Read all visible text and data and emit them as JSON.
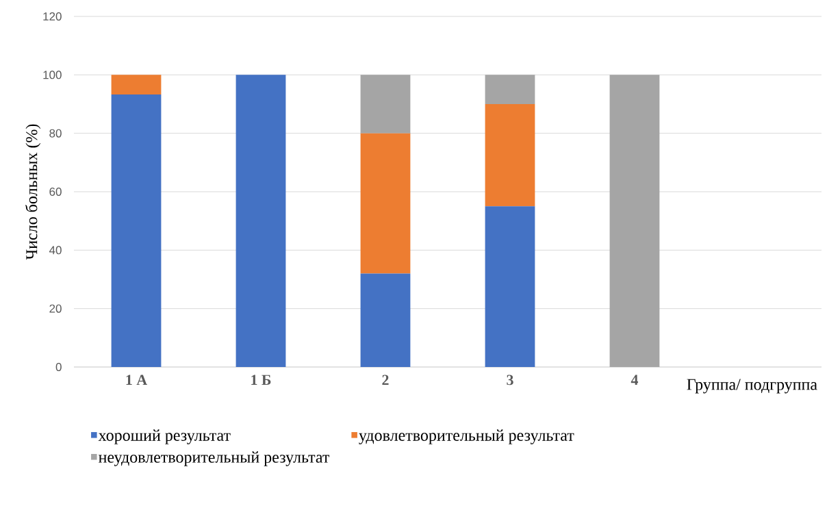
{
  "chart_data": {
    "type": "bar",
    "stacked": true,
    "ylabel": "Число больных (%)",
    "xlabel": "Группа/ подгруппа",
    "categories": [
      "1 А",
      "1 Б",
      "2",
      "3",
      "4"
    ],
    "series": [
      {
        "name": "хороший результат",
        "color": "#4472c4",
        "values": [
          93.3,
          100,
          32,
          55,
          0
        ]
      },
      {
        "name": "удовлетворительный результат",
        "color": "#ed7d31",
        "values": [
          6.7,
          0,
          48,
          35,
          0
        ]
      },
      {
        "name": "неудовлетворительный результат",
        "color": "#a5a5a5",
        "values": [
          0,
          0,
          20,
          10,
          100
        ]
      }
    ],
    "ylim": [
      0,
      120
    ],
    "yticks": [
      0,
      20,
      40,
      60,
      80,
      100,
      120
    ],
    "grid": "y",
    "legend": "bottom"
  }
}
